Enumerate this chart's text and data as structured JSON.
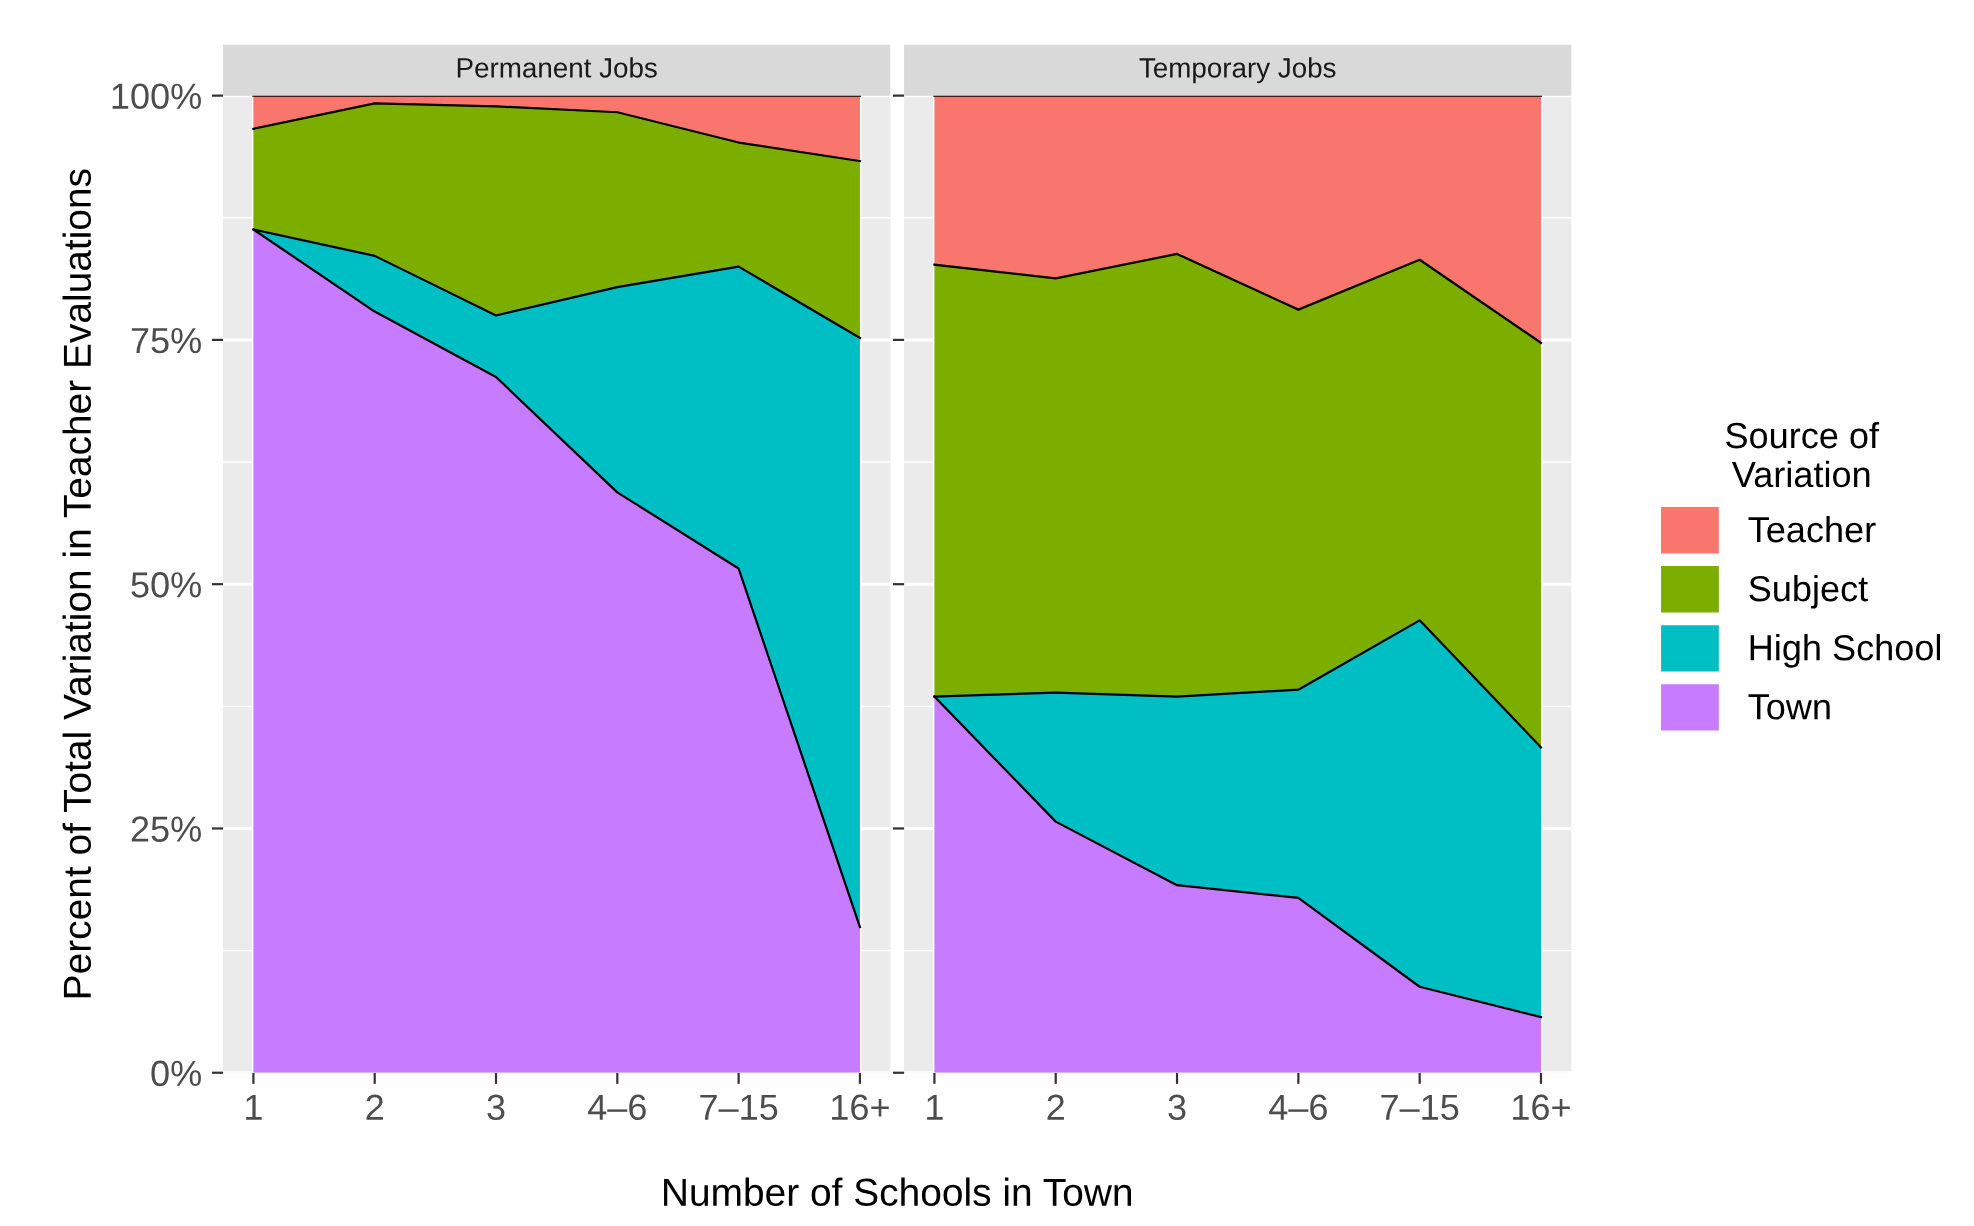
{
  "chart_data": [
    {
      "type": "area",
      "stacked": true,
      "title": "Permanent Jobs",
      "xlabel": "Number of Schools in Town",
      "ylabel": "Percent of Total Variation in Teacher Evaluations",
      "categories": [
        "1",
        "2",
        "3",
        "4–6",
        "7–15",
        "16+"
      ],
      "ylim": [
        0,
        100
      ],
      "yticks": [
        {
          "value": 0,
          "label": "0%"
        },
        {
          "value": 25,
          "label": "25%"
        },
        {
          "value": 50,
          "label": "50%"
        },
        {
          "value": 75,
          "label": "75%"
        },
        {
          "value": 100,
          "label": "100%"
        }
      ],
      "grid": true,
      "legend": "right",
      "legend_title": "Source of\nVariation",
      "series": [
        {
          "name": "Town",
          "color": "#c77cff",
          "values": [
            86.3,
            77.9,
            71.2,
            59.4,
            51.6,
            14.9
          ]
        },
        {
          "name": "High School",
          "color": "#00bfc4",
          "values": [
            0,
            5.7,
            6.3,
            21.0,
            30.9,
            60.3
          ]
        },
        {
          "name": "Subject",
          "color": "#7cae00",
          "values": [
            10.3,
            15.6,
            21.4,
            17.9,
            12.7,
            18.1
          ]
        },
        {
          "name": "Teacher",
          "color": "#f8766d",
          "values": [
            3.4,
            0.8,
            1.1,
            1.7,
            4.8,
            6.7
          ]
        }
      ]
    },
    {
      "type": "area",
      "stacked": true,
      "title": "Temporary Jobs",
      "categories": [
        "1",
        "2",
        "3",
        "4–6",
        "7–15",
        "16+"
      ],
      "ylim": [
        0,
        100
      ],
      "yticks": [
        0,
        25,
        50,
        75,
        100
      ],
      "tick_labels": "x",
      "grid": true,
      "series": [
        {
          "color": "#c77cff",
          "values": [
            38.5,
            25.7,
            19.2,
            17.9,
            8.8,
            5.7
          ]
        },
        {
          "color": "#00bfc4",
          "values": [
            0,
            13.2,
            19.3,
            21.3,
            37.5,
            27.6
          ]
        },
        {
          "color": "#7cae00",
          "values": [
            44.2,
            42.4,
            45.3,
            38.9,
            36.9,
            41.4
          ]
        },
        {
          "color": "#f8766d",
          "values": [
            17.3,
            18.7,
            16.2,
            21.9,
            16.8,
            25.3
          ]
        }
      ]
    }
  ]
}
